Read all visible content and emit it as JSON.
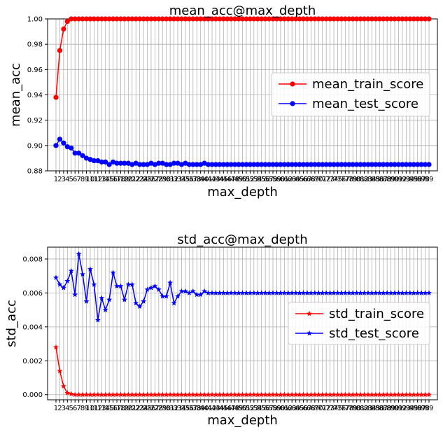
{
  "chart_data": [
    {
      "type": "line",
      "title": "mean_acc@max_depth",
      "xlabel": "max_depth",
      "ylabel": "mean_acc",
      "ylim": [
        0.88,
        1.0
      ],
      "yticks": [
        "0.88",
        "0.90",
        "0.92",
        "0.94",
        "0.96",
        "0.98",
        "1.00"
      ],
      "grid": true,
      "legend_position": "center-right",
      "x": [
        1,
        2,
        3,
        4,
        5,
        6,
        7,
        8,
        9,
        10,
        11,
        12,
        13,
        14,
        15,
        16,
        17,
        18,
        19,
        20,
        21,
        22,
        23,
        24,
        25,
        26,
        27,
        28,
        29,
        30,
        31,
        32,
        33,
        34,
        35,
        36,
        37,
        38,
        39,
        40,
        41,
        42,
        43,
        44,
        45,
        46,
        47,
        48,
        49,
        50,
        51,
        52,
        53,
        54,
        55,
        56,
        57,
        58,
        59,
        60,
        61,
        62,
        63,
        64,
        65,
        66,
        67,
        68,
        69,
        70,
        71,
        72,
        73,
        74,
        75,
        76,
        77,
        78,
        79,
        80,
        81,
        82,
        83,
        84,
        85,
        86,
        87,
        88,
        89,
        90,
        91,
        92,
        93,
        94,
        95,
        96,
        97,
        98,
        99
      ],
      "series": [
        {
          "name": "mean_train_score",
          "color": "#ff0000",
          "marker": "circle",
          "values": [
            0.938,
            0.975,
            0.992,
            0.998,
            1.0,
            1.0,
            1.0,
            1.0,
            1.0,
            1.0,
            1.0,
            1.0,
            1.0,
            1.0,
            1.0,
            1.0,
            1.0,
            1.0,
            1.0,
            1.0,
            1.0,
            1.0,
            1.0,
            1.0,
            1.0,
            1.0,
            1.0,
            1.0,
            1.0,
            1.0,
            1.0,
            1.0,
            1.0,
            1.0,
            1.0,
            1.0,
            1.0,
            1.0,
            1.0,
            1.0,
            1.0,
            1.0,
            1.0,
            1.0,
            1.0,
            1.0,
            1.0,
            1.0,
            1.0,
            1.0,
            1.0,
            1.0,
            1.0,
            1.0,
            1.0,
            1.0,
            1.0,
            1.0,
            1.0,
            1.0,
            1.0,
            1.0,
            1.0,
            1.0,
            1.0,
            1.0,
            1.0,
            1.0,
            1.0,
            1.0,
            1.0,
            1.0,
            1.0,
            1.0,
            1.0,
            1.0,
            1.0,
            1.0,
            1.0,
            1.0,
            1.0,
            1.0,
            1.0,
            1.0,
            1.0,
            1.0,
            1.0,
            1.0,
            1.0,
            1.0,
            1.0,
            1.0,
            1.0,
            1.0,
            1.0,
            1.0,
            1.0,
            1.0,
            1.0
          ]
        },
        {
          "name": "mean_test_score",
          "color": "#0000ff",
          "marker": "circle",
          "values": [
            0.9,
            0.905,
            0.902,
            0.899,
            0.898,
            0.894,
            0.894,
            0.892,
            0.89,
            0.889,
            0.888,
            0.888,
            0.887,
            0.887,
            0.885,
            0.887,
            0.886,
            0.886,
            0.886,
            0.886,
            0.885,
            0.886,
            0.885,
            0.885,
            0.885,
            0.886,
            0.885,
            0.886,
            0.886,
            0.885,
            0.885,
            0.886,
            0.886,
            0.885,
            0.886,
            0.885,
            0.885,
            0.885,
            0.885,
            0.886,
            0.885,
            0.885,
            0.885,
            0.885,
            0.885,
            0.885,
            0.885,
            0.885,
            0.885,
            0.885,
            0.885,
            0.885,
            0.885,
            0.885,
            0.885,
            0.885,
            0.885,
            0.885,
            0.885,
            0.885,
            0.885,
            0.885,
            0.885,
            0.885,
            0.885,
            0.885,
            0.885,
            0.885,
            0.885,
            0.885,
            0.885,
            0.885,
            0.885,
            0.885,
            0.885,
            0.885,
            0.885,
            0.885,
            0.885,
            0.885,
            0.885,
            0.885,
            0.885,
            0.885,
            0.885,
            0.885,
            0.885,
            0.885,
            0.885,
            0.885,
            0.885,
            0.885,
            0.885,
            0.885,
            0.885,
            0.885,
            0.885,
            0.885,
            0.885
          ]
        }
      ]
    },
    {
      "type": "line",
      "title": "std_acc@max_depth",
      "xlabel": "max_depth",
      "ylabel": "std_acc",
      "ylim": [
        -0.0003,
        0.0087
      ],
      "yticks": [
        "0.000",
        "0.002",
        "0.004",
        "0.006",
        "0.008"
      ],
      "grid": true,
      "legend_position": "center-right",
      "x": [
        1,
        2,
        3,
        4,
        5,
        6,
        7,
        8,
        9,
        10,
        11,
        12,
        13,
        14,
        15,
        16,
        17,
        18,
        19,
        20,
        21,
        22,
        23,
        24,
        25,
        26,
        27,
        28,
        29,
        30,
        31,
        32,
        33,
        34,
        35,
        36,
        37,
        38,
        39,
        40,
        41,
        42,
        43,
        44,
        45,
        46,
        47,
        48,
        49,
        50,
        51,
        52,
        53,
        54,
        55,
        56,
        57,
        58,
        59,
        60,
        61,
        62,
        63,
        64,
        65,
        66,
        67,
        68,
        69,
        70,
        71,
        72,
        73,
        74,
        75,
        76,
        77,
        78,
        79,
        80,
        81,
        82,
        83,
        84,
        85,
        86,
        87,
        88,
        89,
        90,
        91,
        92,
        93,
        94,
        95,
        96,
        97,
        98,
        99
      ],
      "series": [
        {
          "name": "std_train_score",
          "color": "#ff0000",
          "marker": "star",
          "values": [
            0.0028,
            0.0014,
            0.0005,
            0.0001,
            5e-05,
            0.0,
            0.0,
            0.0,
            0.0,
            0.0,
            0.0,
            0.0,
            0.0,
            0.0,
            0.0,
            0.0,
            0.0,
            0.0,
            0.0,
            0.0,
            0.0,
            0.0,
            0.0,
            0.0,
            0.0,
            0.0,
            0.0,
            0.0,
            0.0,
            0.0,
            0.0,
            0.0,
            0.0,
            0.0,
            0.0,
            0.0,
            0.0,
            0.0,
            0.0,
            0.0,
            0.0,
            0.0,
            0.0,
            0.0,
            0.0,
            0.0,
            0.0,
            0.0,
            0.0,
            0.0,
            0.0,
            0.0,
            0.0,
            0.0,
            0.0,
            0.0,
            0.0,
            0.0,
            0.0,
            0.0,
            0.0,
            0.0,
            0.0,
            0.0,
            0.0,
            0.0,
            0.0,
            0.0,
            0.0,
            0.0,
            0.0,
            0.0,
            0.0,
            0.0,
            0.0,
            0.0,
            0.0,
            0.0,
            0.0,
            0.0,
            0.0,
            0.0,
            0.0,
            0.0,
            0.0,
            0.0,
            0.0,
            0.0,
            0.0,
            0.0,
            0.0,
            0.0,
            0.0,
            0.0,
            0.0,
            0.0,
            0.0,
            0.0,
            0.0
          ]
        },
        {
          "name": "std_test_score",
          "color": "#0000ff",
          "marker": "star",
          "values": [
            0.0069,
            0.0065,
            0.0063,
            0.0067,
            0.0073,
            0.0059,
            0.0083,
            0.0071,
            0.0055,
            0.0074,
            0.0065,
            0.0044,
            0.0057,
            0.005,
            0.0056,
            0.0072,
            0.0064,
            0.0064,
            0.0056,
            0.0065,
            0.0065,
            0.0054,
            0.0052,
            0.0055,
            0.0062,
            0.0063,
            0.0064,
            0.0062,
            0.0058,
            0.0058,
            0.0066,
            0.0054,
            0.0058,
            0.0061,
            0.0061,
            0.006,
            0.0061,
            0.0059,
            0.0059,
            0.0061,
            0.006,
            0.006,
            0.006,
            0.006,
            0.006,
            0.006,
            0.006,
            0.006,
            0.006,
            0.006,
            0.006,
            0.006,
            0.006,
            0.006,
            0.006,
            0.006,
            0.006,
            0.006,
            0.006,
            0.006,
            0.006,
            0.006,
            0.006,
            0.006,
            0.006,
            0.006,
            0.006,
            0.006,
            0.006,
            0.006,
            0.006,
            0.006,
            0.006,
            0.006,
            0.006,
            0.006,
            0.006,
            0.006,
            0.006,
            0.006,
            0.006,
            0.006,
            0.006,
            0.006,
            0.006,
            0.006,
            0.006,
            0.006,
            0.006,
            0.006,
            0.006,
            0.006,
            0.006,
            0.006,
            0.006,
            0.006,
            0.006,
            0.006,
            0.006
          ]
        }
      ]
    }
  ]
}
